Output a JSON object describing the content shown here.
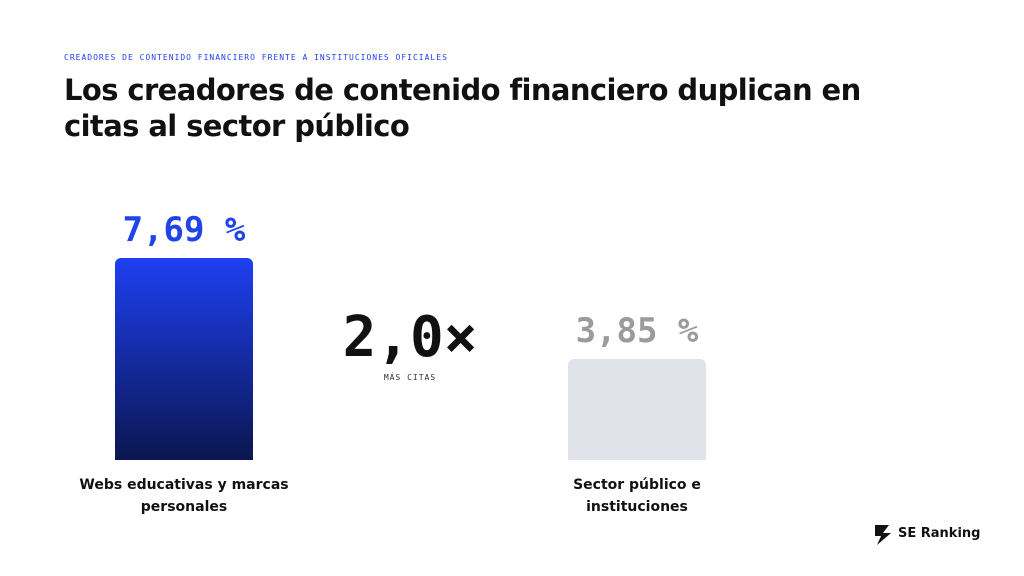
{
  "chart_data": {
    "type": "bar",
    "kicker": "CREADORES DE CONTENIDO FINANCIERO FRENTE A INSTITUCIONES OFICIALES",
    "title": "Los creadores de contenido financiero duplican en citas al sector público",
    "categories": [
      "Webs educativas y marcas personales",
      "Sector público e instituciones"
    ],
    "values": [
      7.69,
      3.85
    ],
    "value_labels": [
      "7,69 %",
      "3,85 %"
    ],
    "colors": [
      "#1e3ff2",
      "#e1e3ea"
    ],
    "label_colors": [
      "#1e44ea",
      "#9b9b9b"
    ],
    "annotation": {
      "value": "2,0×",
      "label": "MÁS CITAS"
    }
  },
  "brand": "SE Ranking"
}
